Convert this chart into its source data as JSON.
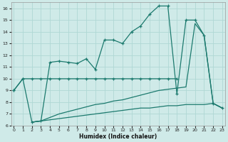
{
  "xlabel": "Humidex (Indice chaleur)",
  "bg_color": "#cfeae8",
  "grid_color": "#afd8d4",
  "line_color": "#1c7a6e",
  "xlim": [
    -0.3,
    23.3
  ],
  "ylim": [
    6.0,
    16.5
  ],
  "yticks": [
    6,
    7,
    8,
    9,
    10,
    11,
    12,
    13,
    14,
    15,
    16
  ],
  "xticks": [
    0,
    1,
    2,
    3,
    4,
    5,
    6,
    7,
    8,
    9,
    10,
    11,
    12,
    13,
    14,
    15,
    16,
    17,
    18,
    19,
    20,
    21,
    22,
    23
  ],
  "line_main_x": [
    0,
    1,
    2,
    3,
    4,
    5,
    6,
    7,
    8,
    9,
    10,
    11,
    12,
    13,
    14,
    15,
    16,
    17,
    18,
    19,
    20,
    21,
    22,
    23
  ],
  "line_main_y": [
    9.0,
    10.0,
    6.3,
    6.4,
    11.4,
    11.5,
    11.4,
    11.3,
    11.7,
    10.8,
    13.3,
    13.3,
    13.0,
    14.0,
    14.5,
    15.5,
    16.2,
    16.2,
    8.7,
    15.0,
    15.0,
    13.7,
    7.9,
    7.5
  ],
  "line_flat_x": [
    0,
    1,
    2,
    3,
    4,
    5,
    6,
    7,
    8,
    9,
    10,
    11,
    12,
    13,
    14,
    15,
    16,
    17,
    18
  ],
  "line_flat_y": [
    9.0,
    10.0,
    10.0,
    10.0,
    10.0,
    10.0,
    10.0,
    10.0,
    10.0,
    10.0,
    10.0,
    10.0,
    10.0,
    10.0,
    10.0,
    10.0,
    10.0,
    10.0,
    10.0
  ],
  "line_mid_x": [
    2,
    3,
    4,
    5,
    6,
    7,
    8,
    9,
    10,
    11,
    12,
    13,
    14,
    15,
    16,
    17,
    18,
    19,
    20,
    21,
    22,
    23
  ],
  "line_mid_y": [
    6.3,
    6.4,
    6.7,
    7.0,
    7.2,
    7.4,
    7.6,
    7.8,
    7.9,
    8.1,
    8.2,
    8.4,
    8.6,
    8.8,
    9.0,
    9.1,
    9.2,
    9.3,
    14.7,
    13.7,
    7.9,
    7.5
  ],
  "line_low_x": [
    2,
    3,
    4,
    5,
    6,
    7,
    8,
    9,
    10,
    11,
    12,
    13,
    14,
    15,
    16,
    17,
    18,
    19,
    20,
    21,
    22,
    23
  ],
  "line_low_y": [
    6.3,
    6.4,
    6.5,
    6.6,
    6.7,
    6.8,
    6.9,
    7.0,
    7.1,
    7.2,
    7.3,
    7.4,
    7.5,
    7.5,
    7.6,
    7.7,
    7.7,
    7.8,
    7.8,
    7.8,
    7.9,
    7.5
  ]
}
